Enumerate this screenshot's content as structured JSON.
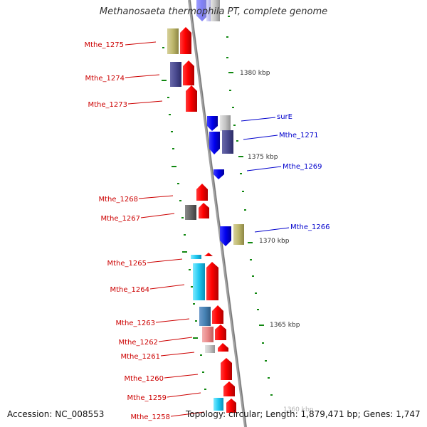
{
  "title": "Methanosaeta thermophila PT, complete genome",
  "footer": {
    "accession": "Accession: NC_008553",
    "topology": "Topology: circular; Length: 1,879,471 bp; Genes: 1,747"
  },
  "colors": {
    "left_label": "#cc0000",
    "right_label": "#0000cc",
    "backbone": "#999999",
    "tick": "#118811",
    "scale_text": "#333333"
  },
  "scale_labels": [
    {
      "text": "1380 kbp"
    },
    {
      "text": "1375 kbp"
    },
    {
      "text": "1370 kbp"
    },
    {
      "text": "1365 kbp"
    },
    {
      "text": "1360 kbp"
    }
  ],
  "left_genes": [
    {
      "label": "Mthe_1275"
    },
    {
      "label": "Mthe_1274"
    },
    {
      "label": "Mthe_1273"
    },
    {
      "label": "Mthe_1268"
    },
    {
      "label": "Mthe_1267"
    },
    {
      "label": "Mthe_1265"
    },
    {
      "label": "Mthe_1264"
    },
    {
      "label": "Mthe_1263"
    },
    {
      "label": "Mthe_1262"
    },
    {
      "label": "Mthe_1261"
    },
    {
      "label": "Mthe_1260"
    },
    {
      "label": "Mthe_1259"
    },
    {
      "label": "Mthe_1258"
    }
  ],
  "right_genes": [
    {
      "label": "surE"
    },
    {
      "label": "Mthe_1271"
    },
    {
      "label": "Mthe_1269"
    },
    {
      "label": "Mthe_1266"
    }
  ]
}
